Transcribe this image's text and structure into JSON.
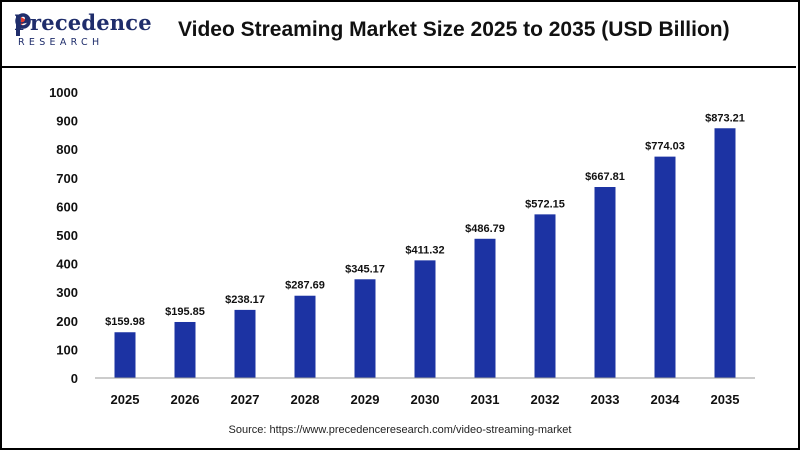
{
  "header": {
    "logo_main": "Precedence",
    "logo_sub": "RESEARCH",
    "title": "Video Streaming Market Size 2025 to 2035 (USD Billion)"
  },
  "footer": {
    "source": "Source: https://www.precedenceresearch.com/video-streaming-market"
  },
  "colors": {
    "bar": "#1c33a3",
    "brand": "#1f2d6b",
    "accent": "#e23a2e"
  },
  "chart_data": {
    "type": "bar",
    "title": "Video Streaming Market Size 2025 to 2035 (USD Billion)",
    "xlabel": "",
    "ylabel": "",
    "categories": [
      "2025",
      "2026",
      "2027",
      "2028",
      "2029",
      "2030",
      "2031",
      "2032",
      "2033",
      "2034",
      "2035"
    ],
    "values": [
      159.98,
      195.85,
      238.17,
      287.69,
      345.17,
      411.32,
      486.79,
      572.15,
      667.81,
      774.03,
      873.21
    ],
    "value_labels": [
      "$159.98",
      "$195.85",
      "$238.17",
      "$287.69",
      "$345.17",
      "$411.32",
      "$486.79",
      "$572.15",
      "$667.81",
      "$774.03",
      "$873.21"
    ],
    "yticks": [
      "0",
      "100",
      "200",
      "300",
      "400",
      "500",
      "600",
      "700",
      "800",
      "900",
      "1000"
    ],
    "ylim": [
      0,
      1000
    ],
    "grid": false,
    "legend": "none"
  }
}
